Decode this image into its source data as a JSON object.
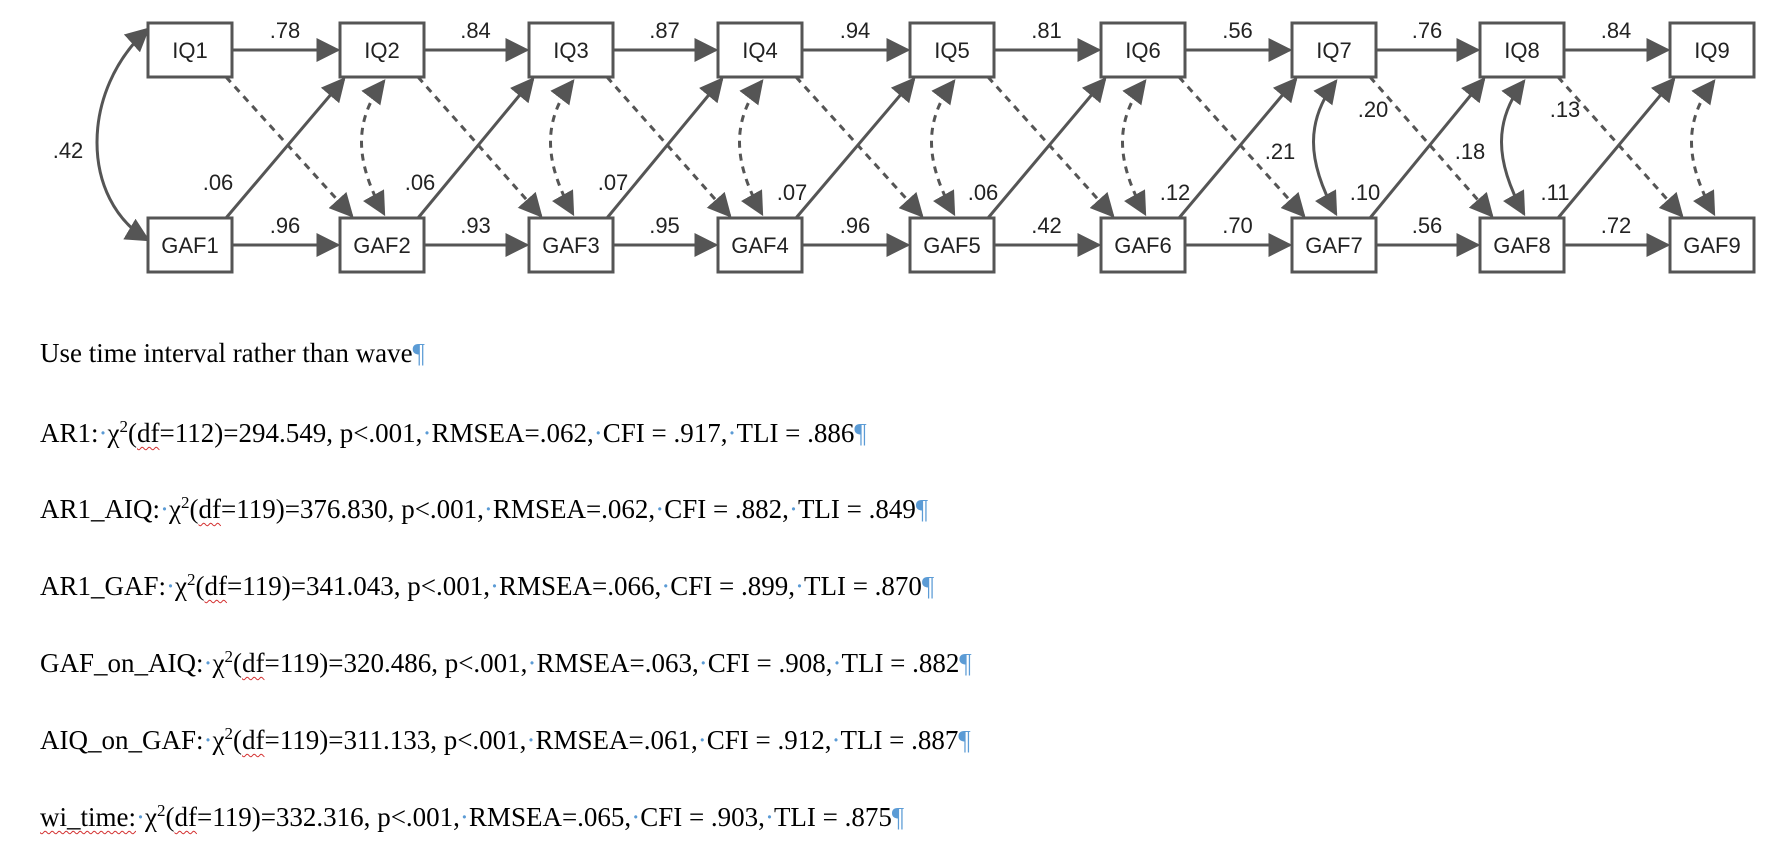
{
  "diagram": {
    "iq_nodes": [
      "IQ1",
      "IQ2",
      "IQ3",
      "IQ4",
      "IQ5",
      "IQ6",
      "IQ7",
      "IQ8",
      "IQ9"
    ],
    "gaf_nodes": [
      "GAF1",
      "GAF2",
      "GAF3",
      "GAF4",
      "GAF5",
      "GAF6",
      "GAF7",
      "GAF8",
      "GAF9"
    ],
    "iq_autoregressive": [
      ".78",
      ".84",
      ".87",
      ".94",
      ".81",
      ".56",
      ".76",
      ".84"
    ],
    "gaf_autoregressive": [
      ".96",
      ".93",
      ".95",
      ".96",
      ".42",
      ".70",
      ".56",
      ".72"
    ],
    "gaf_to_iq_cross": [
      ".06",
      ".06",
      ".07",
      ".07",
      ".06",
      ".12",
      ".10",
      ".11"
    ],
    "iq_to_gaf_cross": [
      "",
      "",
      "",
      "",
      "",
      ".21",
      ".20",
      ".13"
    ],
    "curved_cov_extra": [
      ".18"
    ],
    "initial_covariance": ".42"
  },
  "text": {
    "heading": "Use time interval rather than wave",
    "models": [
      {
        "name": "AR1:",
        "df": "=112)=294.549,",
        "p": "p<.001,",
        "rmsea": "RMSEA=.062,",
        "cfi": "CFI = .917,",
        "tli": "TLI = .886"
      },
      {
        "name": "AR1_AIQ:",
        "df": "=119)=376.830,",
        "p": "p<.001,",
        "rmsea": "RMSEA=.062,",
        "cfi": "CFI = .882,",
        "tli": "TLI = .849"
      },
      {
        "name": "AR1_GAF:",
        "df": "=119)=341.043,",
        "p": "p<.001,",
        "rmsea": "RMSEA=.066,",
        "cfi": "CFI = .899,",
        "tli": "TLI = .870"
      },
      {
        "name": "GAF_on_AIQ:",
        "df": "=119)=320.486,",
        "p": "p<.001,",
        "rmsea": "RMSEA=.063,",
        "cfi": "CFI = .908,",
        "tli": "TLI = .882"
      },
      {
        "name": "AIQ_on_GAF:",
        "df": "=119)=311.133,",
        "p": "p<.001,",
        "rmsea": "RMSEA=.061,",
        "cfi": "CFI = .912,",
        "tli": "TLI = .887"
      },
      {
        "name": "wi_time:",
        "df": "=119)=332.316,",
        "p": "p<.001,",
        "rmsea": "RMSEA=.065,",
        "cfi": "CFI = .903,",
        "tli": "TLI = .875"
      }
    ],
    "chi_symbol": "χ",
    "chi_sup": "2",
    "df_label": "df",
    "pilcrow": "¶"
  }
}
